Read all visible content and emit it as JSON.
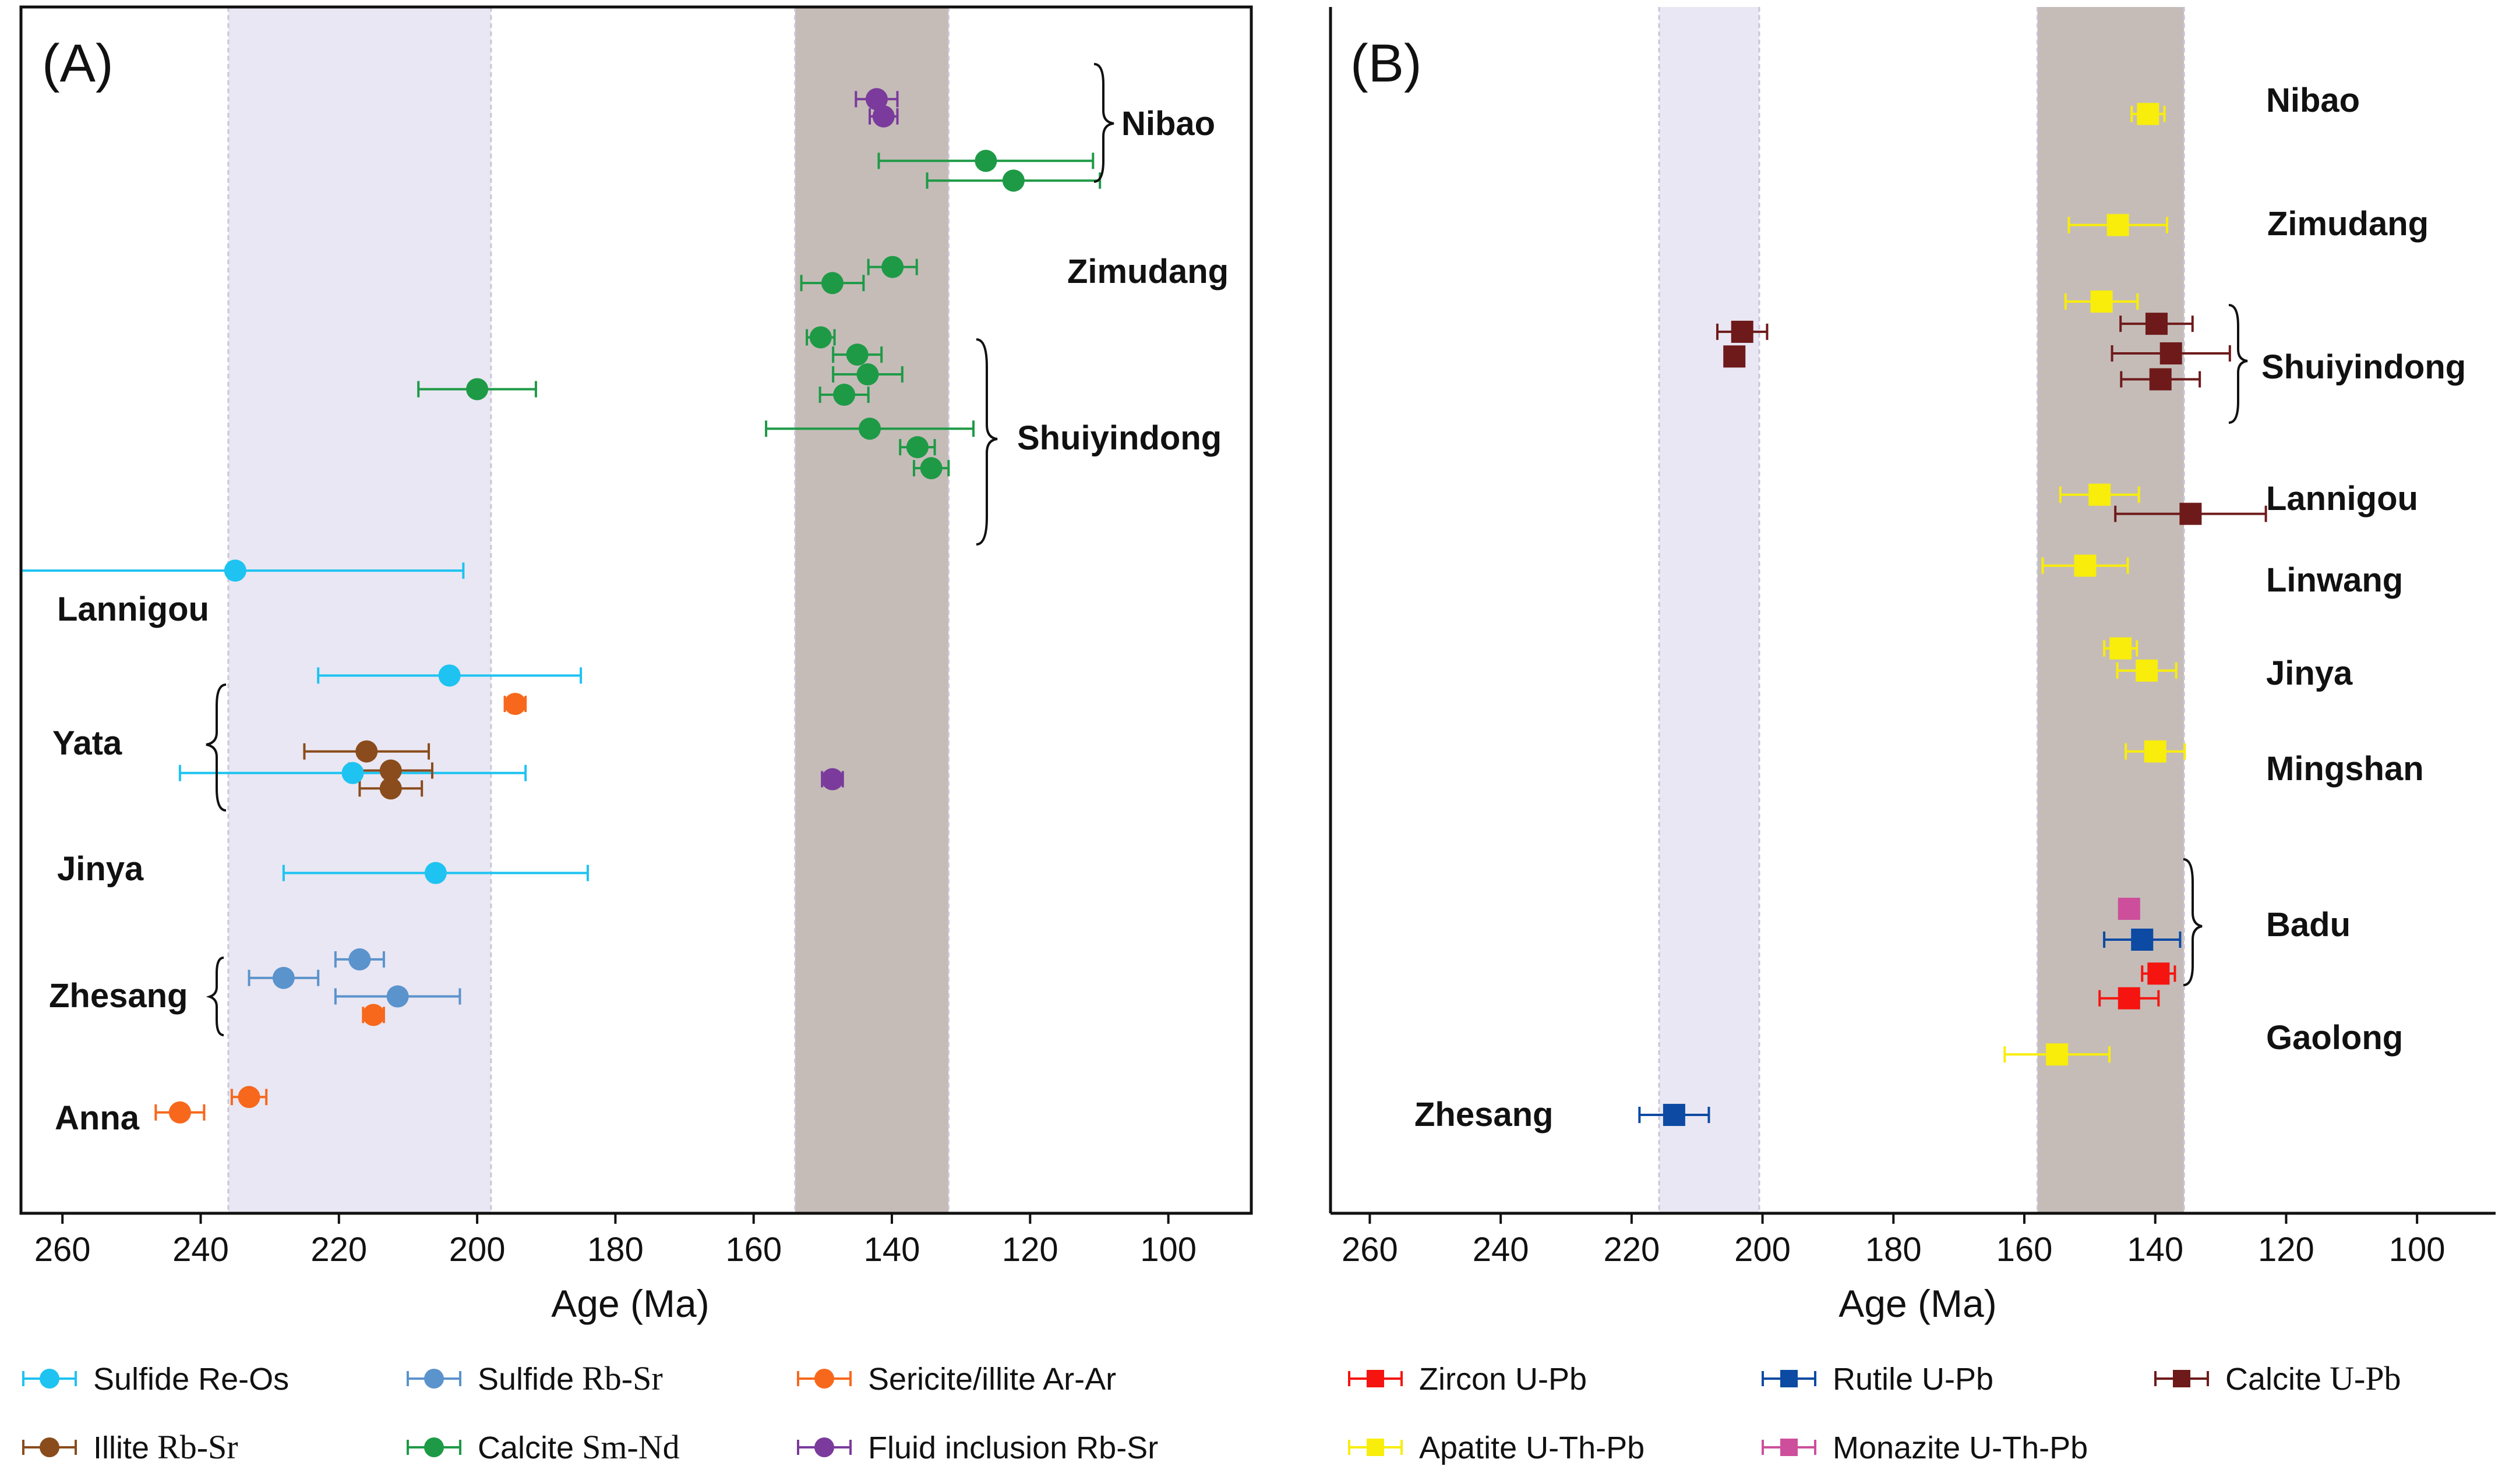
{
  "chart_data": [
    {
      "type": "scatter",
      "panel_label": "(A)",
      "xlabel": "Age (Ma)",
      "xlim": [
        266,
        88
      ],
      "x_reversed": true,
      "xticks": [
        260,
        240,
        220,
        200,
        180,
        160,
        140,
        120,
        100
      ],
      "shaded_ranges": [
        {
          "from": 236,
          "to": 198,
          "color": "#e9e7f3"
        },
        {
          "from": 154,
          "to": 131.8,
          "color": "#c5bcb8"
        }
      ],
      "site_labels": [
        "Nibao",
        "Zimudang",
        "Shuiyindong",
        "Lannigou",
        "Yata",
        "Jinya",
        "Zhesang",
        "Anna"
      ],
      "series": [
        {
          "name": "Sulfide Re-Os",
          "color": "#1ec3f1",
          "marker": "circle",
          "points": [
            {
              "age": 235,
              "err_young": 33,
              "err_old": 35,
              "row": 8.02
            },
            {
              "age": 204,
              "err_young": 19,
              "err_old": 19,
              "row": 9.72
            },
            {
              "age": 218,
              "err_young": 25,
              "err_old": 25,
              "row": 11.3
            },
            {
              "age": 206,
              "err_young": 22,
              "err_old": 22,
              "row": 12.92
            }
          ]
        },
        {
          "name": "Sulfide Rb-Sr",
          "color": "#5b93cc",
          "marker": "circle",
          "points": [
            {
              "age": 217,
              "err_young": 3.5,
              "err_old": 3.5,
              "row": 14.32
            },
            {
              "age": 228,
              "err_young": 5,
              "err_old": 5,
              "row": 14.62
            },
            {
              "age": 211.5,
              "err_young": 9,
              "err_old": 9,
              "row": 14.92
            }
          ]
        },
        {
          "name": "Sericite/illite Ar-Ar",
          "color": "#f7681c",
          "marker": "circle",
          "points": [
            {
              "age": 194.5,
              "err_young": 1.5,
              "err_old": 1.5,
              "row": 10.18
            },
            {
              "age": 215,
              "err_young": 1.5,
              "err_old": 1.5,
              "row": 15.22
            },
            {
              "age": 233,
              "err_young": 2.5,
              "err_old": 2.5,
              "row": 16.55
            },
            {
              "age": 243,
              "err_young": 3.5,
              "err_old": 3.5,
              "row": 16.8
            }
          ]
        },
        {
          "name": "Illite Rb-Sr",
          "color": "#8a4c1c",
          "marker": "circle",
          "points": [
            {
              "age": 216,
              "err_young": 9,
              "err_old": 9,
              "row": 10.95
            },
            {
              "age": 212.5,
              "err_young": 6,
              "err_old": 6,
              "row": 11.26
            },
            {
              "age": 212.5,
              "err_young": 4.5,
              "err_old": 4.5,
              "row": 11.55
            }
          ]
        },
        {
          "name": "Calcite Sm-Nd",
          "color": "#1e9a46",
          "marker": "circle",
          "points": [
            {
              "age": 126.4,
              "err_young": 15.5,
              "err_old": 15.5,
              "row": 1.38
            },
            {
              "age": 122.4,
              "err_young": 12.5,
              "err_old": 12.5,
              "row": 1.7
            },
            {
              "age": 139.9,
              "err_young": 3.5,
              "err_old": 3.5,
              "row": 3.1
            },
            {
              "age": 148.6,
              "err_young": 4.5,
              "err_old": 4.5,
              "row": 3.36
            },
            {
              "age": 150.3,
              "err_young": 2,
              "err_old": 2,
              "row": 4.24
            },
            {
              "age": 145,
              "err_young": 3.5,
              "err_old": 3.5,
              "row": 4.52
            },
            {
              "age": 143.5,
              "err_young": 5,
              "err_old": 5,
              "row": 4.84
            },
            {
              "age": 146.9,
              "err_young": 3.5,
              "err_old": 3.5,
              "row": 5.17
            },
            {
              "age": 143.2,
              "err_young": 15,
              "err_old": 15,
              "row": 5.72
            },
            {
              "age": 136.3,
              "err_young": 2.5,
              "err_old": 2.5,
              "row": 6.02
            },
            {
              "age": 134.3,
              "err_young": 2.5,
              "err_old": 2.5,
              "row": 6.36
            },
            {
              "age": 200,
              "err_young": 8.5,
              "err_old": 8.5,
              "row": 5.08
            }
          ]
        },
        {
          "name": "Fluid inclusion Rb-Sr",
          "color": "#7a3b9c",
          "marker": "circle",
          "points": [
            {
              "age": 142.2,
              "err_young": 3,
              "err_old": 3,
              "row": 0.38
            },
            {
              "age": 141.2,
              "err_young": 2,
              "err_old": 2,
              "row": 0.66
            },
            {
              "age": 148.6,
              "err_young": 1.5,
              "err_old": 1.5,
              "row": 11.4
            }
          ]
        }
      ]
    },
    {
      "type": "scatter",
      "panel_label": "(B)",
      "xlabel": "Age (Ma)",
      "xlim": [
        266,
        88
      ],
      "x_reversed": true,
      "xticks": [
        260,
        240,
        220,
        200,
        180,
        160,
        140,
        120,
        100
      ],
      "shaded_ranges": [
        {
          "from": 215.8,
          "to": 200.5,
          "color": "#e9e7f3"
        },
        {
          "from": 158,
          "to": 135.6,
          "color": "#c5bcb8"
        }
      ],
      "site_labels": [
        "Nibao",
        "Zimudang",
        "Shuiyindong",
        "Lannigou",
        "Linwang",
        "Jinya",
        "Mingshan",
        "Badu",
        "Gaolong",
        "Zhesang"
      ],
      "series": [
        {
          "name": "Zircon U-Pb",
          "color": "#f5140f",
          "marker": "square",
          "points": [
            {
              "age": 139.5,
              "err_young": 2.5,
              "err_old": 2.5,
              "row": 14.55
            },
            {
              "age": 144,
              "err_young": 4.5,
              "err_old": 4.5,
              "row": 14.95
            }
          ]
        },
        {
          "name": "Rutile U-Pb",
          "color": "#0c4aa3",
          "marker": "square",
          "points": [
            {
              "age": 142,
              "err_young": 5.8,
              "err_old": 5.8,
              "row": 14.0
            },
            {
              "age": 213.5,
              "err_young": 5.3,
              "err_old": 5.3,
              "row": 16.84
            }
          ]
        },
        {
          "name": "Calcite U-Pb",
          "color": "#6e1a1a",
          "marker": "square",
          "points": [
            {
              "age": 203.1,
              "err_young": 3.8,
              "err_old": 3.8,
              "row": 4.15
            },
            {
              "age": 204.3,
              "err_young": 1.2,
              "err_old": 1.2,
              "row": 4.55
            },
            {
              "age": 139.8,
              "err_young": 5.5,
              "err_old": 5.5,
              "row": 4.02
            },
            {
              "age": 137.6,
              "err_young": 9,
              "err_old": 9,
              "row": 4.5
            },
            {
              "age": 139.2,
              "err_young": 6,
              "err_old": 6,
              "row": 4.92
            },
            {
              "age": 134.6,
              "err_young": 11.5,
              "err_old": 11.5,
              "row": 7.1
            }
          ]
        },
        {
          "name": "Apatite U-Th-Pb",
          "color": "#f8ed0b",
          "marker": "square",
          "points": [
            {
              "age": 141.1,
              "err_young": 2.5,
              "err_old": 2.5,
              "row": 0.62
            },
            {
              "age": 145.7,
              "err_young": 7.5,
              "err_old": 7.5,
              "row": 2.42
            },
            {
              "age": 148.2,
              "err_young": 5.5,
              "err_old": 5.5,
              "row": 3.66
            },
            {
              "age": 148.5,
              "err_young": 6,
              "err_old": 6,
              "row": 6.79
            },
            {
              "age": 150.7,
              "err_young": 6.5,
              "err_old": 6.5,
              "row": 7.94
            },
            {
              "age": 145.3,
              "err_young": 2.5,
              "err_old": 2.5,
              "row": 9.28
            },
            {
              "age": 141.3,
              "err_young": 4.5,
              "err_old": 4.5,
              "row": 9.64
            },
            {
              "age": 140,
              "err_young": 4.5,
              "err_old": 4.5,
              "row": 10.95
            },
            {
              "age": 155,
              "err_young": 8,
              "err_old": 8,
              "row": 15.86
            }
          ]
        },
        {
          "name": "Monazite U-Th-Pb",
          "color": "#cd4f9b",
          "marker": "square",
          "points": [
            {
              "age": 144,
              "err_young": 1.5,
              "err_old": 1.5,
              "row": 13.5
            }
          ]
        }
      ]
    }
  ],
  "legend": {
    "panel_a": [
      {
        "label": "Sulfide Re-Os",
        "sym": "",
        "color": "#1ec3f1",
        "marker": "circle"
      },
      {
        "label": "Sulfide",
        "sym": "Rb-Sr",
        "color": "#5b93cc",
        "marker": "circle"
      },
      {
        "label": "Sericite/illite Ar-Ar",
        "sym": "",
        "color": "#f7681c",
        "marker": "circle"
      },
      {
        "label": "Illite",
        "sym": "Rb-Sr",
        "color": "#8a4c1c",
        "marker": "circle"
      },
      {
        "label": "Calcite",
        "sym": "Sm-Nd",
        "color": "#1e9a46",
        "marker": "circle"
      },
      {
        "label": "Fluid inclusion Rb-Sr",
        "sym": "",
        "color": "#7a3b9c",
        "marker": "circle"
      }
    ],
    "panel_b": [
      {
        "label": "Zircon U-Pb",
        "sym": "",
        "color": "#f5140f",
        "marker": "square"
      },
      {
        "label": "Rutile  U-Pb",
        "sym": "",
        "color": "#0c4aa3",
        "marker": "square"
      },
      {
        "label": "Calcite",
        "sym": "U-Pb",
        "color": "#6e1a1a",
        "marker": "square"
      },
      {
        "label": "Apatite  U-Th-Pb",
        "sym": "",
        "color": "#f8ed0b",
        "marker": "square"
      },
      {
        "label": "Monazite  U-Th-Pb",
        "sym": "",
        "color": "#cd4f9b",
        "marker": "square"
      }
    ]
  }
}
